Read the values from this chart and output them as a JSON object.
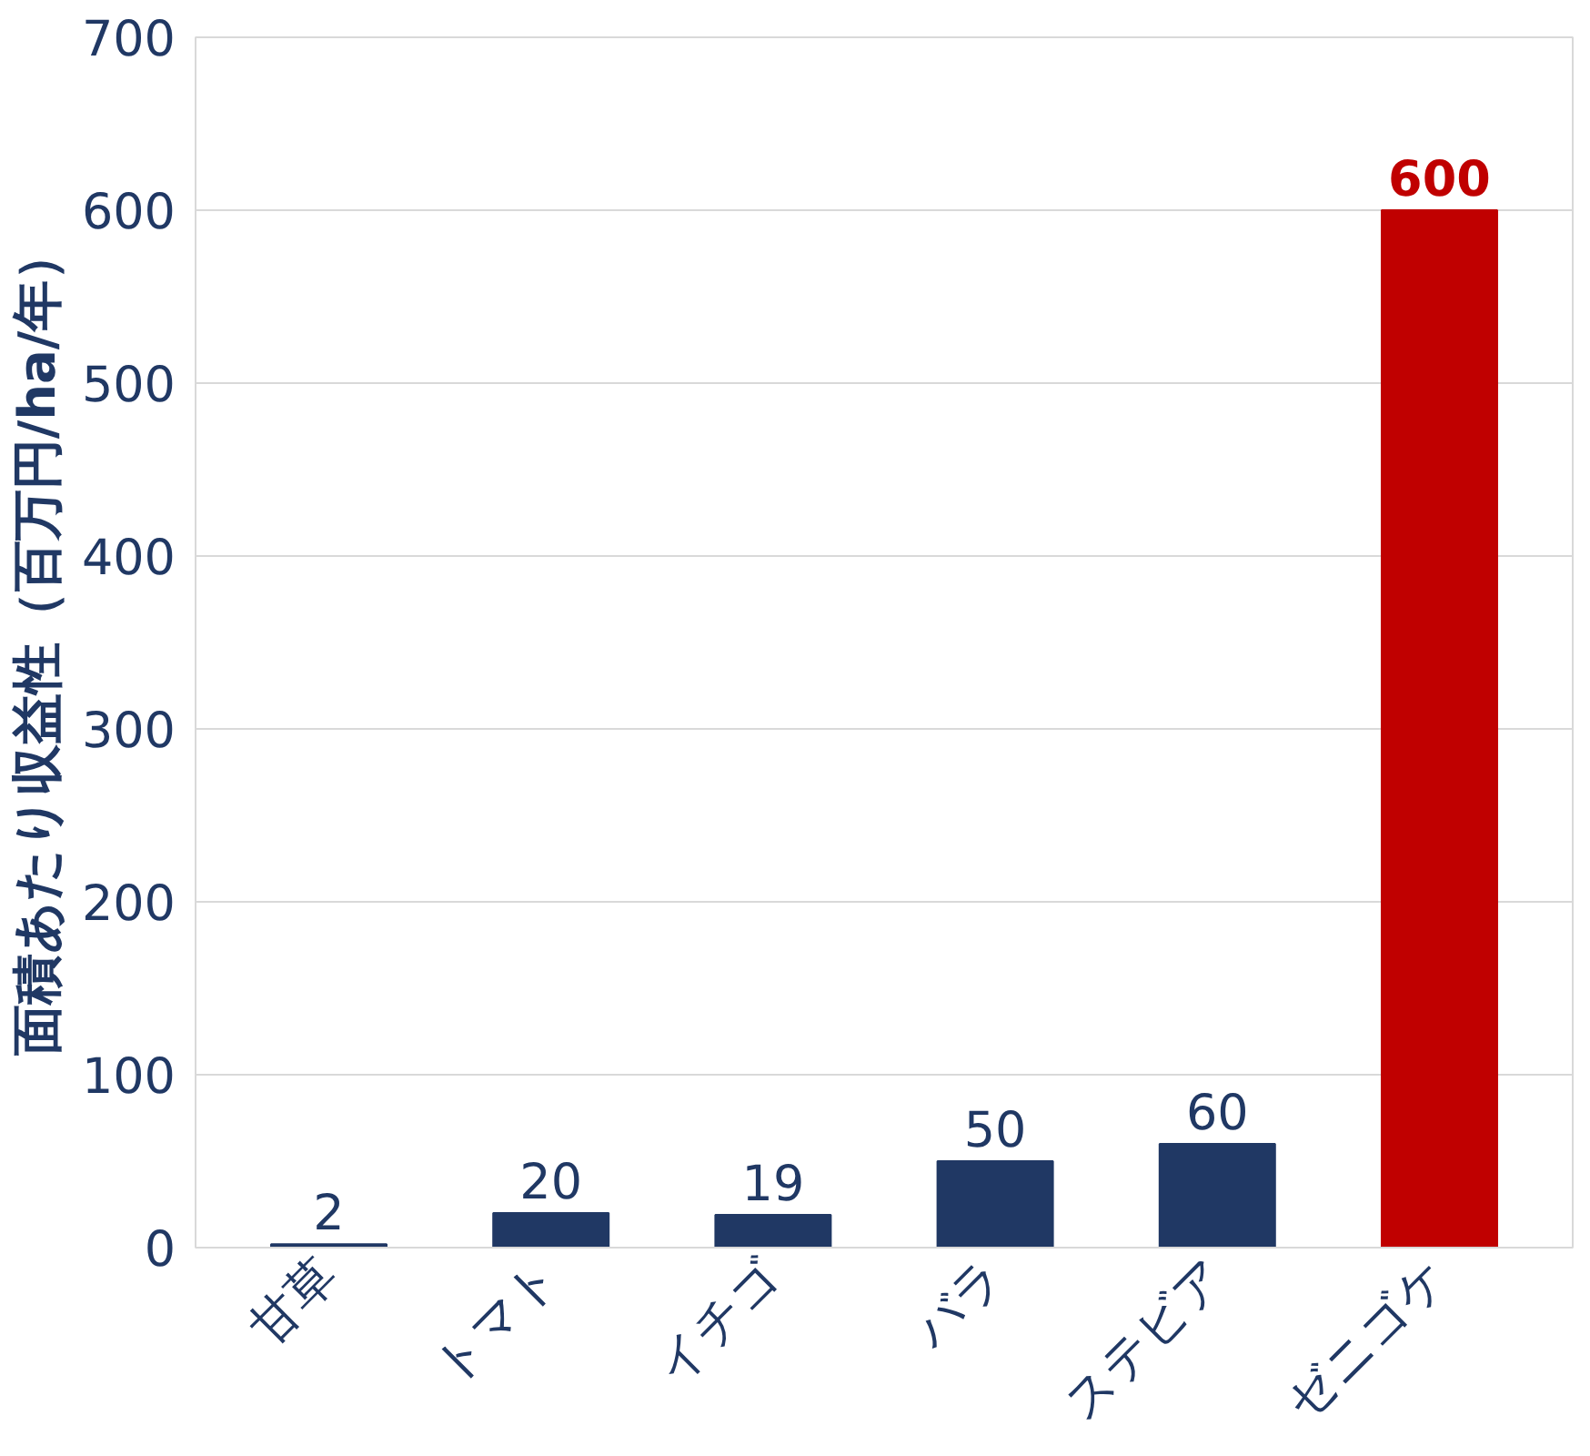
{
  "chart_data": {
    "type": "bar",
    "ylabel": "面積あたり収益性（百万円/ha/年）",
    "categories": [
      "甘草",
      "トマト",
      "イチゴ",
      "バラ",
      "ステビア",
      "ゼニゴケ"
    ],
    "values": [
      2,
      20,
      19,
      50,
      60,
      600
    ],
    "colors": [
      "#203864",
      "#203864",
      "#203864",
      "#203864",
      "#203864",
      "#c00000"
    ],
    "ylim": [
      0,
      700
    ],
    "yticks": [
      0,
      100,
      200,
      300,
      400,
      500,
      600,
      700
    ],
    "grid": "y",
    "data_labels": true
  }
}
